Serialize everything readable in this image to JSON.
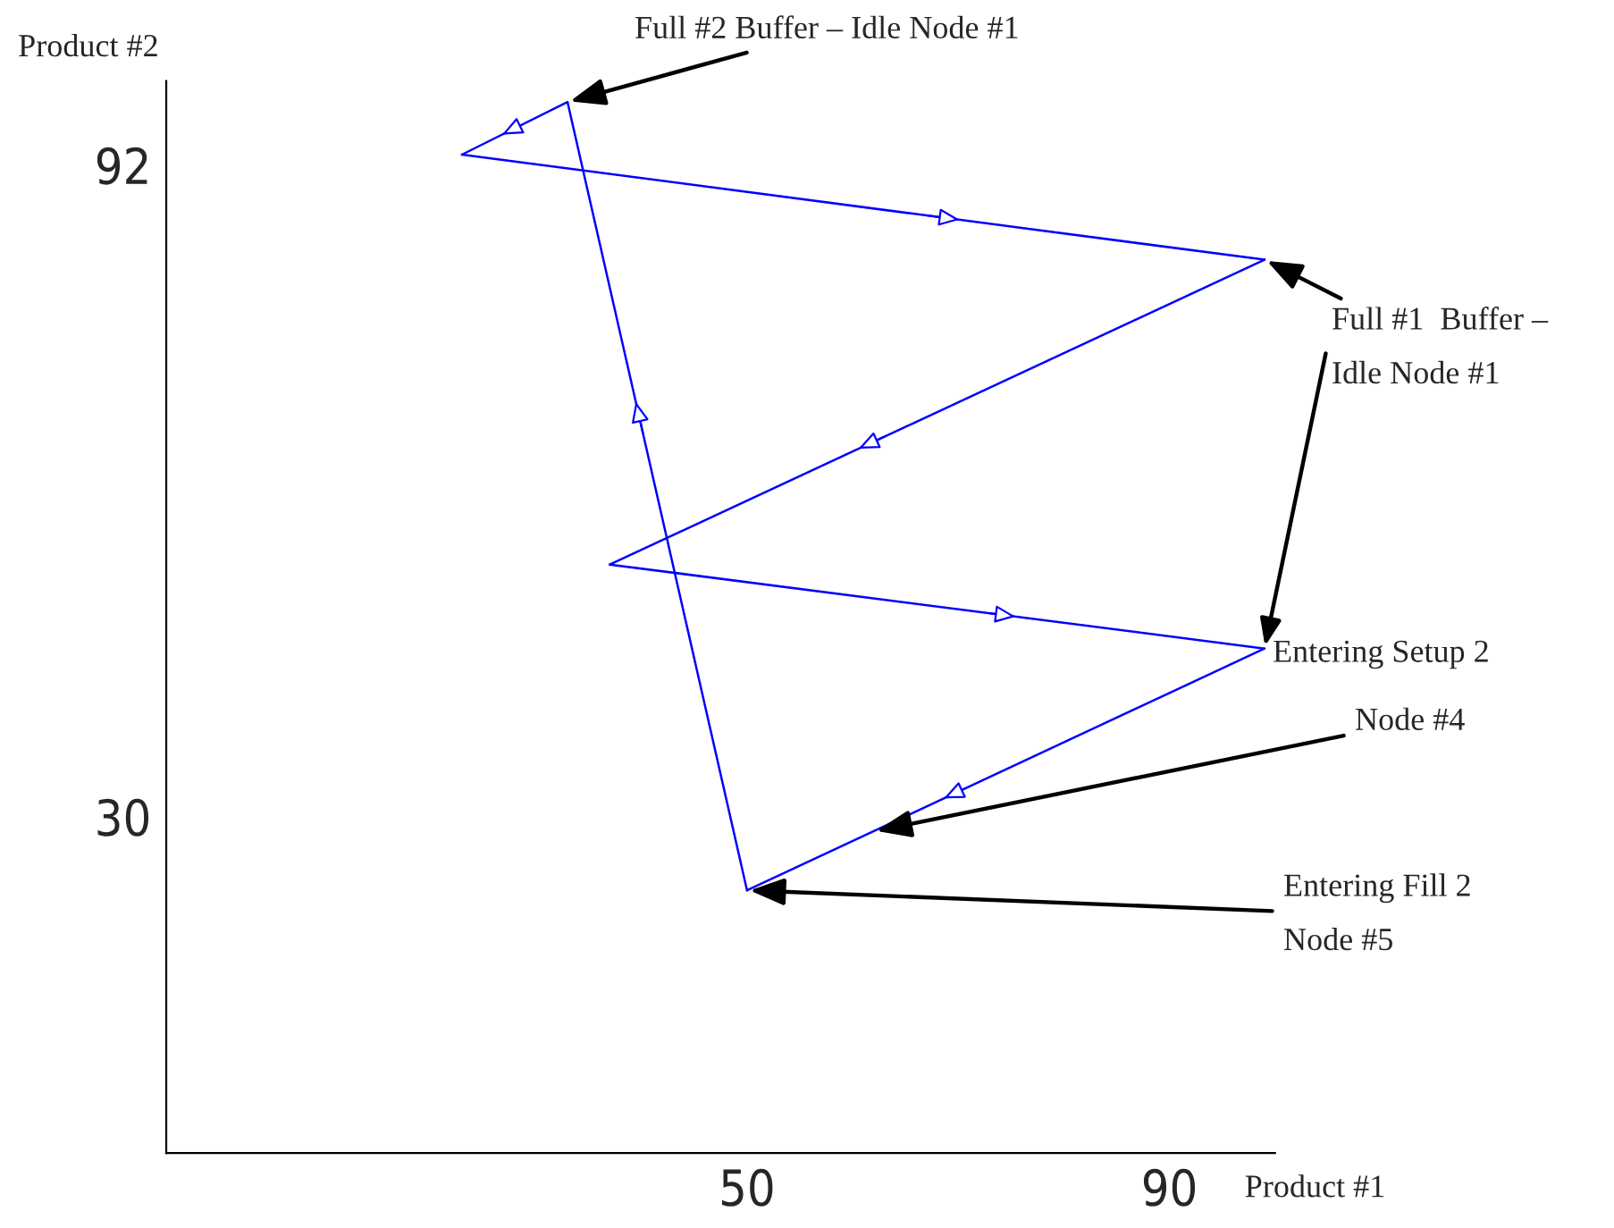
{
  "chart_data": {
    "type": "line",
    "xlabel": "Product #1",
    "ylabel": "Product #2",
    "series": [
      {
        "color": "#0000ff",
        "x": [
          50,
          33
        ],
        "values": [
          23,
          98
        ]
      },
      {
        "color": "#0000ff",
        "x": [
          33,
          23
        ],
        "values": [
          98,
          93
        ]
      },
      {
        "color": "#0000ff",
        "x": [
          23,
          99
        ],
        "values": [
          93,
          83
        ]
      },
      {
        "color": "#0000ff",
        "x": [
          99,
          37
        ],
        "values": [
          83,
          54
        ]
      },
      {
        "color": "#0000ff",
        "x": [
          37,
          99
        ],
        "values": [
          54,
          46
        ]
      },
      {
        "color": "#0000ff",
        "x": [
          99,
          50
        ],
        "values": [
          46,
          23
        ]
      }
    ],
    "xlim": [
      -5,
      100
    ],
    "ylim": [
      -2,
      100
    ],
    "xticks": [
      50,
      90
    ],
    "yticks": [
      30,
      92
    ],
    "grid": false,
    "legend": false,
    "marker": "none",
    "line_style": "solid",
    "annotations": [
      {
        "text": "Full #2 Buffer – Idle Node #1",
        "x": 33,
        "y": 98
      },
      {
        "text": "Full #1  Buffer –\n\nIdle Node #1",
        "x": 99,
        "y": 83
      },
      {
        "text": "Entering Setup 2",
        "x": 99,
        "y": 46
      },
      {
        "text": "Node #4",
        "x": 62,
        "y": 28.6
      },
      {
        "text": "Entering Fill 2\n\nNode #5",
        "x": 50,
        "y": 23
      }
    ]
  }
}
